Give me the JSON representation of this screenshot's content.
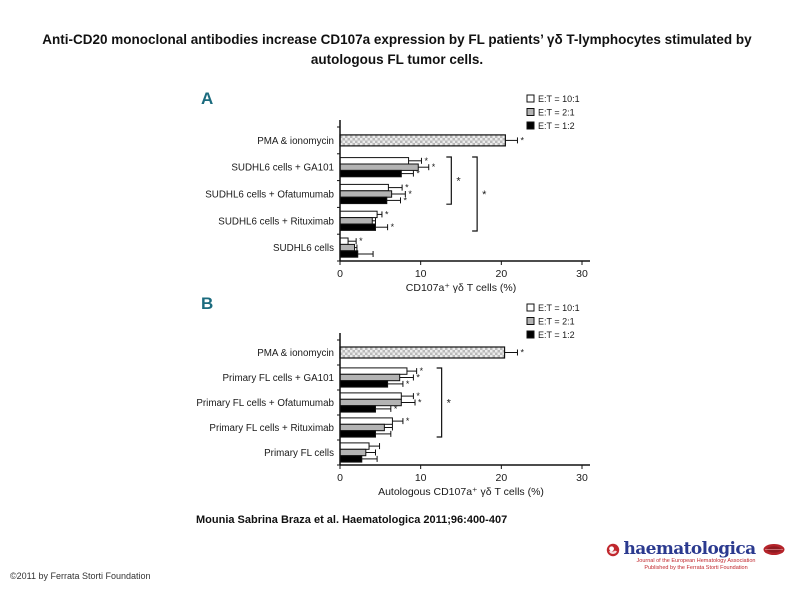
{
  "slide": {
    "title": "Anti-CD20 monoclonal antibodies increase CD107a expression by FL patients’ γδ T-lymphocytes stimulated by autologous FL tumor cells.",
    "citation": "Mounia Sabrina Braza et al. Haematologica 2011;96:400-407",
    "copyright": "©2011 by Ferrata Storti Foundation",
    "panel_label_color": "#1b6b7e"
  },
  "logo": {
    "name": "haematologica",
    "tagline1": "Journal of the European Hematology Association",
    "tagline2": "Published by the Ferrata Storti Foundation",
    "brand_blue": "#2b3a8f",
    "brand_red": "#c0272d"
  },
  "chart_data": [
    {
      "type": "bar",
      "panel": "A",
      "orientation": "horizontal",
      "xlabel": "CD107a⁺ γδ T cells (%)",
      "xlim": [
        0,
        30
      ],
      "xticks": [
        0,
        10,
        20,
        30
      ],
      "grid": false,
      "legend_position": "top-right",
      "legend": [
        {
          "label": "E:T = 10:1",
          "fill": "#ffffff"
        },
        {
          "label": "E:T = 2:1",
          "fill": "#b3b3b3"
        },
        {
          "label": "E:T = 1:2",
          "fill": "#000000"
        }
      ],
      "categories": [
        "PMA & ionomycin",
        "SUDHL6 cells + GA101",
        "SUDHL6 cells +  Ofatumumab",
        "SUDHL6 cells +  Rituximab",
        "SUDHL6 cells"
      ],
      "rows": [
        {
          "style": "hatched",
          "values": [
            20.5
          ],
          "errors": [
            1.5
          ],
          "sig": [
            "*"
          ]
        },
        {
          "values": [
            8.5,
            9.7,
            7.6
          ],
          "errors": [
            1.6,
            1.3,
            1.5
          ],
          "sig": [
            "*",
            "*",
            "*"
          ]
        },
        {
          "values": [
            6.0,
            6.4,
            5.8
          ],
          "errors": [
            1.7,
            1.7,
            1.7
          ],
          "sig": [
            "*",
            "*",
            "*"
          ]
        },
        {
          "values": [
            4.6,
            4.0,
            4.4
          ],
          "errors": [
            0.6,
            0.4,
            1.5
          ],
          "sig": [
            "*",
            "",
            "*"
          ]
        },
        {
          "values": [
            1.0,
            1.8,
            2.2
          ],
          "errors": [
            1.0,
            0.3,
            1.9
          ],
          "sig": [
            "*",
            "",
            ""
          ]
        }
      ],
      "brackets": [
        {
          "rows": [
            1,
            2
          ],
          "x": 13.8,
          "sig": "*"
        },
        {
          "rows": [
            1,
            3
          ],
          "x": 17.0,
          "sig": "*"
        }
      ]
    },
    {
      "type": "bar",
      "panel": "B",
      "orientation": "horizontal",
      "xlabel": "Autologous CD107a⁺ γδ T cells (%)",
      "xlim": [
        0,
        30
      ],
      "xticks": [
        0,
        10,
        20,
        30
      ],
      "grid": false,
      "legend_position": "top-right",
      "legend": [
        {
          "label": "E:T = 10:1",
          "fill": "#ffffff"
        },
        {
          "label": "E:T = 2:1",
          "fill": "#b3b3b3"
        },
        {
          "label": "E:T = 1:2",
          "fill": "#000000"
        }
      ],
      "categories": [
        "PMA & ionomycin",
        "Primary FL cells + GA101",
        "Primary FL cells + Ofatumumab",
        "Primary FL cells + Rituximab",
        "Primary FL cells"
      ],
      "rows": [
        {
          "style": "hatched",
          "values": [
            20.4
          ],
          "errors": [
            1.6
          ],
          "sig": [
            "*"
          ]
        },
        {
          "values": [
            8.3,
            7.4,
            5.9
          ],
          "errors": [
            1.2,
            1.7,
            1.9
          ],
          "sig": [
            "*",
            "*",
            "*"
          ]
        },
        {
          "values": [
            7.6,
            7.6,
            4.4
          ],
          "errors": [
            1.5,
            1.7,
            1.9
          ],
          "sig": [
            "*",
            "*",
            "*"
          ]
        },
        {
          "values": [
            6.5,
            5.5,
            4.4
          ],
          "errors": [
            1.3,
            1.0,
            1.9
          ],
          "sig": [
            "*",
            "",
            ""
          ]
        },
        {
          "values": [
            3.6,
            3.2,
            2.7
          ],
          "errors": [
            1.3,
            1.2,
            1.9
          ],
          "sig": [
            "",
            "",
            ""
          ]
        }
      ],
      "brackets": [
        {
          "rows": [
            1,
            3
          ],
          "x": 12.6,
          "sig": "*"
        }
      ]
    }
  ]
}
